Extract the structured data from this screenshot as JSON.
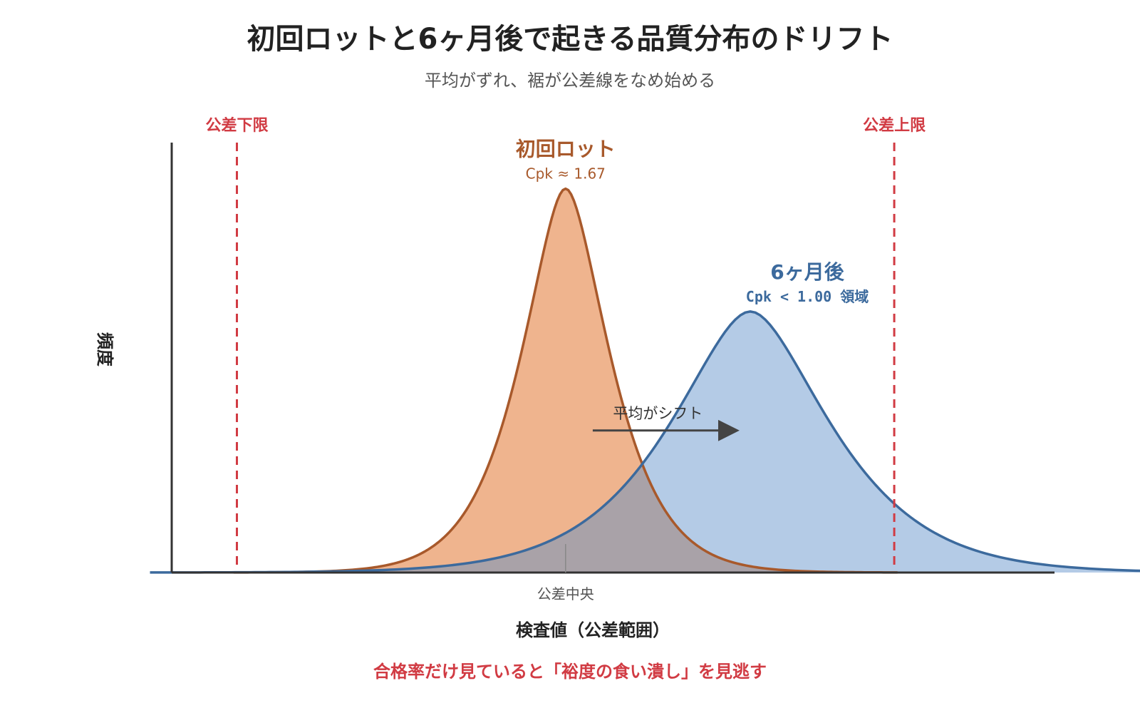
{
  "colors": {
    "initial_stroke": "#a8592b",
    "initial_fill": "#efb48e",
    "after_stroke": "#3c6a9d",
    "after_fill": "#b4cbe6",
    "overlap_fill": "#a9a2a8",
    "limit": "#d13b43",
    "axis": "#333333",
    "arrow": "#444444",
    "center_tick": "#888888"
  },
  "chart_data": {
    "type": "area",
    "title": "初回ロットと6ヶ月後で起きる品質分布のドリフト",
    "subtitle": "平均がずれ、裾が公差線をなめ始める",
    "xlabel": "検査値（公差範囲）",
    "ylabel": "頻度",
    "xlim": [
      -1.45,
      1.8
    ],
    "ylim": [
      0,
      1.12
    ],
    "grid": false,
    "series": [
      {
        "name": "初回ロット",
        "annotation": "Cpk ≈ 1.67",
        "mean": 0.0,
        "half_width": 0.47,
        "peak": 1.0
      },
      {
        "name": "6ヶ月後",
        "annotation": "Cpk < 1.00 領域",
        "mean": 0.68,
        "half_width": 0.85,
        "peak": 0.68
      }
    ],
    "limits": [
      {
        "label": "公差下限",
        "x": -1.21
      },
      {
        "label": "公差上限",
        "x": 1.21
      }
    ],
    "center": {
      "label": "公差中央",
      "x": 0.0
    },
    "shift_annotation": {
      "label": "平均がシフト",
      "from_x": 0.1,
      "to_x": 0.58,
      "y": 0.37
    },
    "footnote": "合格率だけ見ていると「裕度の食い潰し」を見逃す"
  }
}
